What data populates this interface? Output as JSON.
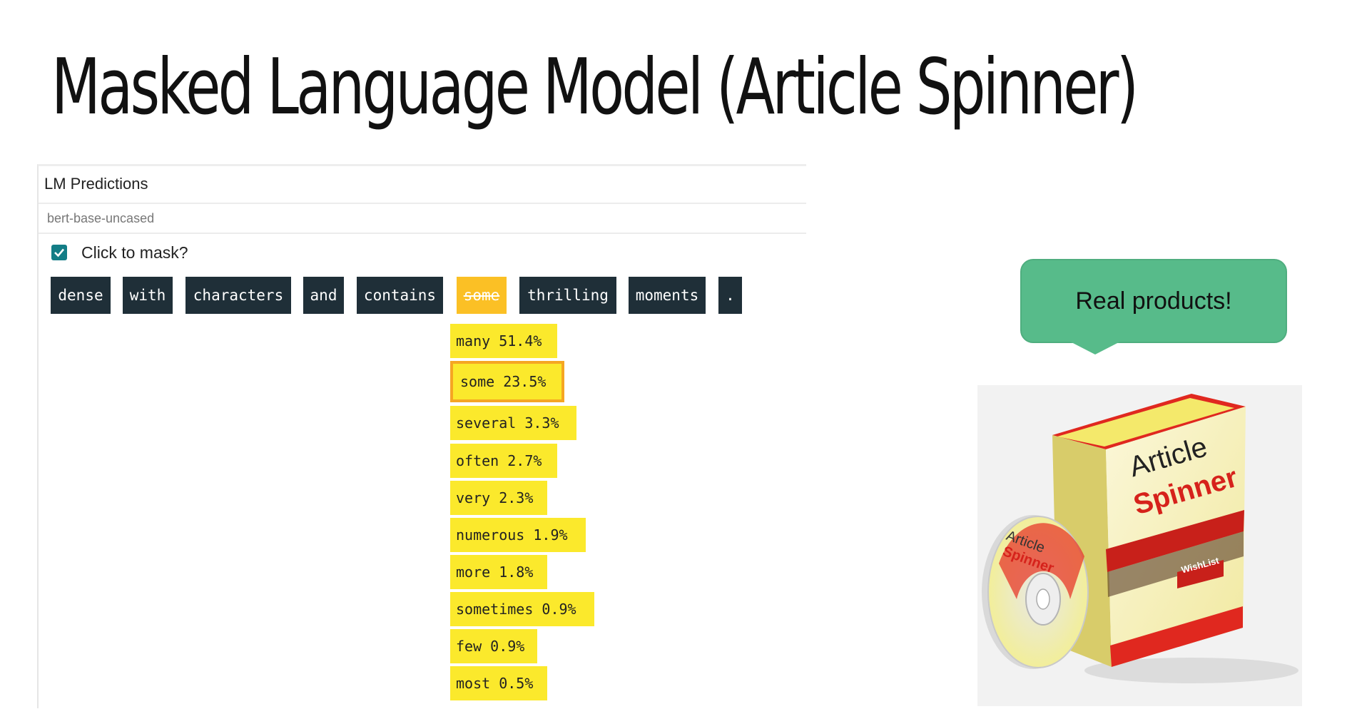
{
  "slide": {
    "title": "Masked Language Model (Article Spinner)"
  },
  "lm_panel": {
    "title": "LM Predictions",
    "model": "bert-base-uncased",
    "mask_checkbox": {
      "label": "Click to mask?",
      "checked": true
    },
    "tokens": [
      "dense",
      "with",
      "characters",
      "and",
      "contains",
      "some",
      "thrilling",
      "moments",
      "."
    ],
    "masked_token": "some",
    "predictions": [
      "many 51.4%",
      "some 23.5%",
      "several 3.3%",
      "often 2.7%",
      "very 2.3%",
      "numerous 1.9%",
      "more 1.8%",
      "sometimes 0.9%",
      "few 0.9%",
      "most 0.5%"
    ],
    "selected_prediction": "some 23.5%"
  },
  "callout": {
    "text": "Real products!"
  },
  "product": {
    "box_title_1": "Article",
    "box_title_2": "Spinner",
    "disc_title_1": "Article",
    "disc_title_2": "Spinner",
    "wishlist": "WishList"
  },
  "colors": {
    "token_bg": "#1f2f38",
    "masked_token_bg": "#fbc025",
    "prediction_bg": "#fbe92c",
    "selected_border": "#f5a623",
    "checkbox": "#137d86",
    "callout_bg": "#57bb8a"
  }
}
